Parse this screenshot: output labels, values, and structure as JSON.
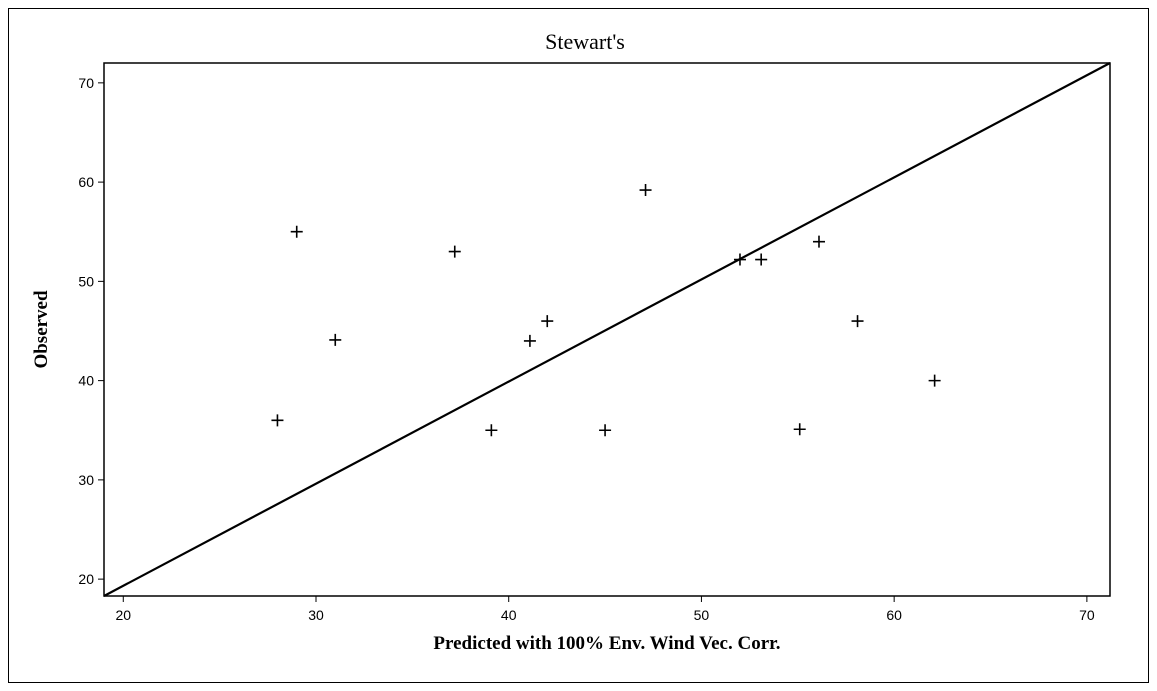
{
  "chart_data": {
    "type": "scatter",
    "title": "Stewart's",
    "xlabel": "Predicted with 100% Env. Wind Vec. Corr.",
    "ylabel": "Observed",
    "xlim": [
      19,
      71.2
    ],
    "ylim": [
      18.3,
      72
    ],
    "xticks": [
      20,
      30,
      40,
      50,
      60,
      70
    ],
    "yticks": [
      20,
      30,
      40,
      50,
      60,
      70
    ],
    "grid": false,
    "marker": "plus",
    "reference_line": {
      "from": [
        19,
        18.3
      ],
      "to": [
        71.2,
        72
      ]
    },
    "points": [
      {
        "x": 28,
        "y": 36
      },
      {
        "x": 29,
        "y": 55
      },
      {
        "x": 31,
        "y": 44.1
      },
      {
        "x": 37.2,
        "y": 53
      },
      {
        "x": 39.1,
        "y": 35
      },
      {
        "x": 41.1,
        "y": 44
      },
      {
        "x": 42,
        "y": 46
      },
      {
        "x": 45,
        "y": 35
      },
      {
        "x": 47.1,
        "y": 59.2
      },
      {
        "x": 52,
        "y": 52.2
      },
      {
        "x": 53.1,
        "y": 52.2
      },
      {
        "x": 55.1,
        "y": 35.1
      },
      {
        "x": 56.1,
        "y": 54
      },
      {
        "x": 58.1,
        "y": 46
      },
      {
        "x": 62.1,
        "y": 40
      }
    ]
  }
}
